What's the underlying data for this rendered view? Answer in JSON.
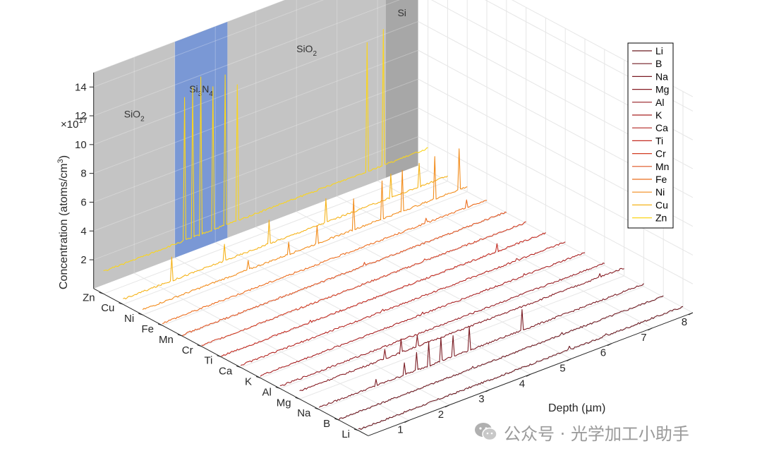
{
  "chart_data": {
    "type": "line",
    "view": "3d-waterfall",
    "title": "",
    "xlabel": "Depth (μm)",
    "xlabel_parts": {
      "pre": "Depth (",
      "mu": "μ",
      "post": "m)"
    },
    "ylabel": "Concentration (atoms/cm³)",
    "ylabel_parts": {
      "pre": "Concentration (atoms/cm",
      "sup": "3",
      "post": ")"
    },
    "y_multiplier": {
      "base": "×10",
      "exp": "17"
    },
    "xlim": [
      0,
      8
    ],
    "ylim": [
      0,
      15
    ],
    "x_ticks": [
      "1",
      "2",
      "3",
      "4",
      "5",
      "6",
      "7",
      "8"
    ],
    "y_ticks": [
      "2",
      "4",
      "6",
      "8",
      "10",
      "12",
      "14"
    ],
    "grid": true,
    "legend_position": "top-right",
    "series": [
      {
        "name": "Li",
        "color": "#6b1a22",
        "baseline": 0.0,
        "spikes": [
          [
            5.2,
            0.3
          ],
          [
            6.1,
            0.2
          ]
        ]
      },
      {
        "name": "B",
        "color": "#701c24",
        "baseline": 0.0,
        "spikes": [
          [
            3.3,
            0.2
          ],
          [
            5.5,
            0.2
          ]
        ]
      },
      {
        "name": "Na",
        "color": "#7a1c24",
        "baseline": 0.1,
        "spikes": [
          [
            1.4,
            0.6
          ],
          [
            2.1,
            1.0
          ],
          [
            2.4,
            1.4
          ],
          [
            2.7,
            1.8
          ],
          [
            3.0,
            1.8
          ],
          [
            3.3,
            1.6
          ],
          [
            3.7,
            1.8
          ],
          [
            5.0,
            1.6
          ]
        ]
      },
      {
        "name": "Mg",
        "color": "#861d24",
        "baseline": 0.5,
        "spikes": [
          [
            2.1,
            1.2
          ],
          [
            2.5,
            1.5
          ],
          [
            2.9,
            1.3
          ],
          [
            7.4,
            0.8
          ]
        ]
      },
      {
        "name": "Al",
        "color": "#951e24",
        "baseline": 0.1,
        "spikes": [
          [
            3.0,
            0.2
          ]
        ]
      },
      {
        "name": "K",
        "color": "#a62022",
        "baseline": 0.1,
        "spikes": [
          [
            4.0,
            0.3
          ],
          [
            6.5,
            0.3
          ]
        ]
      },
      {
        "name": "Ca",
        "color": "#b32622",
        "baseline": 0.1,
        "spikes": [
          [
            3.5,
            0.3
          ],
          [
            6.8,
            0.3
          ]
        ]
      },
      {
        "name": "Ti",
        "color": "#c42c22",
        "baseline": 0.0,
        "spikes": [
          [
            2.2,
            0.2
          ],
          [
            6.8,
            0.6
          ]
        ]
      },
      {
        "name": "Cr",
        "color": "#d13c22",
        "baseline": 0.0,
        "spikes": [
          [
            5.5,
            0.2
          ]
        ]
      },
      {
        "name": "Mn",
        "color": "#df5422",
        "baseline": 0.0,
        "spikes": [
          [
            4.5,
            0.3
          ]
        ]
      },
      {
        "name": "Fe",
        "color": "#eb6d1f",
        "baseline": 0.1,
        "spikes": [
          [
            6.5,
            0.5
          ],
          [
            7.5,
            0.7
          ]
        ]
      },
      {
        "name": "Ni",
        "color": "#f28c1c",
        "baseline": 0.3,
        "spikes": [
          [
            2.6,
            1.0
          ],
          [
            3.6,
            1.2
          ],
          [
            4.3,
            1.6
          ],
          [
            5.2,
            2.5
          ],
          [
            5.9,
            3.0
          ],
          [
            6.4,
            3.2
          ],
          [
            7.2,
            3.3
          ],
          [
            7.8,
            3.2
          ]
        ]
      },
      {
        "name": "Cu",
        "color": "#f5b31a",
        "baseline": 0.3,
        "spikes": [
          [
            1.2,
            2.0
          ],
          [
            2.5,
            1.5
          ],
          [
            3.6,
            2.0
          ],
          [
            5.0,
            2.0
          ],
          [
            6.6,
            2.0
          ],
          [
            7.3,
            2.0
          ]
        ]
      },
      {
        "name": "Zn",
        "color": "#fbd51c",
        "baseline": 1.5,
        "spikes": [
          [
            2.0,
            11.5
          ],
          [
            2.2,
            12.0
          ],
          [
            2.4,
            12.5
          ],
          [
            2.7,
            11.5
          ],
          [
            3.0,
            12.0
          ],
          [
            3.3,
            11.0
          ],
          [
            6.5,
            10.5
          ],
          [
            6.9,
            11.0
          ]
        ]
      }
    ],
    "layer_regions": [
      {
        "label": "SiO",
        "sub": "2",
        "x_range": [
          0,
          2.0
        ],
        "color": "#c4c4c4"
      },
      {
        "label": "Si",
        "sub": "3",
        "label2": "N",
        "sub2": "4",
        "x_range": [
          2.0,
          3.3
        ],
        "color": "#6f8fd1"
      },
      {
        "label": "SiO",
        "sub": "2",
        "x_range": [
          3.3,
          7.2
        ],
        "color": "#c4c4c4"
      },
      {
        "label": "Si",
        "sub": "",
        "x_range": [
          7.2,
          8.0
        ],
        "color": "#a7a7a7"
      }
    ]
  },
  "watermark": {
    "text": "公众号 · 光学加工小助手",
    "icon": "wechat-icon"
  }
}
